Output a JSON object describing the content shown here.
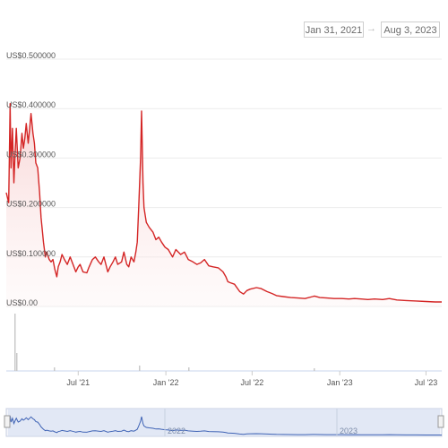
{
  "date_range": {
    "from": "Jan 31, 2021",
    "arrow": "→",
    "to": "Aug 3, 2023"
  },
  "colors": {
    "line": "#d42525",
    "fill_top": "#f6caca",
    "grid": "#ececec",
    "volume": "#c8d4ec",
    "navigator_fill": "#d6e0f2",
    "navigator_line": "#3f63b5"
  },
  "chart_data": {
    "type": "line",
    "title": "",
    "xlabel": "",
    "ylabel": "",
    "y_ticks": [
      "US$0.500000",
      "US$0.400000",
      "US$0.300000",
      "US$0.200000",
      "US$0.100000",
      "US$0.00"
    ],
    "ylim": [
      0,
      0.5
    ],
    "x_ticks": [
      "Jul '21",
      "Jan '22",
      "Jul '22",
      "Jan '23",
      "Jul '23"
    ],
    "x_tick_dates": [
      "2021-07-01",
      "2022-01-01",
      "2022-07-01",
      "2023-01-01",
      "2023-07-01"
    ],
    "xlim": [
      "2021-01-31",
      "2023-08-03"
    ],
    "grid": true,
    "series": [
      {
        "x": [
          "2021-01-31",
          "2021-02-05",
          "2021-02-08",
          "2021-02-10",
          "2021-02-13",
          "2021-02-16",
          "2021-02-18",
          "2021-02-21",
          "2021-02-25",
          "2021-03-01",
          "2021-03-05",
          "2021-03-08",
          "2021-03-11",
          "2021-03-14",
          "2021-03-18",
          "2021-03-21",
          "2021-03-24",
          "2021-03-28",
          "2021-03-31",
          "2021-04-03",
          "2021-04-07",
          "2021-04-11",
          "2021-04-14",
          "2021-04-16",
          "2021-04-19",
          "2021-04-23",
          "2021-04-26",
          "2021-05-01",
          "2021-05-05",
          "2021-05-09",
          "2021-05-13",
          "2021-05-17",
          "2021-05-20",
          "2021-05-24",
          "2021-05-28",
          "2021-06-02",
          "2021-06-08",
          "2021-06-14",
          "2021-06-18",
          "2021-06-22",
          "2021-06-26",
          "2021-07-01",
          "2021-07-05",
          "2021-07-11",
          "2021-07-19",
          "2021-07-24",
          "2021-07-31",
          "2021-08-06",
          "2021-08-13",
          "2021-08-18",
          "2021-08-24",
          "2021-09-01",
          "2021-09-06",
          "2021-09-12",
          "2021-09-17",
          "2021-09-22",
          "2021-09-30",
          "2021-10-05",
          "2021-10-11",
          "2021-10-15",
          "2021-10-20",
          "2021-10-26",
          "2021-10-30",
          "2021-11-02",
          "2021-11-05",
          "2021-11-09",
          "2021-11-11",
          "2021-11-14",
          "2021-11-16",
          "2021-11-21",
          "2021-11-27",
          "2021-12-05",
          "2021-12-11",
          "2021-12-17",
          "2021-12-23",
          "2021-12-30",
          "2022-01-06",
          "2022-01-15",
          "2022-01-22",
          "2022-02-01",
          "2022-02-09",
          "2022-02-17",
          "2022-02-27",
          "2022-03-07",
          "2022-03-15",
          "2022-03-23",
          "2022-04-01",
          "2022-04-10",
          "2022-04-21",
          "2022-05-01",
          "2022-05-07",
          "2022-05-11",
          "2022-05-16",
          "2022-05-25",
          "2022-06-05",
          "2022-06-13",
          "2022-06-20",
          "2022-06-27",
          "2022-07-10",
          "2022-07-20",
          "2022-08-01",
          "2022-08-12",
          "2022-08-21",
          "2022-09-04",
          "2022-09-20",
          "2022-10-05",
          "2022-10-20",
          "2022-11-05",
          "2022-11-09",
          "2022-11-20",
          "2022-12-05",
          "2022-12-20",
          "2023-01-05",
          "2023-01-20",
          "2023-02-01",
          "2023-02-15",
          "2023-03-01",
          "2023-03-15",
          "2023-04-01",
          "2023-04-15",
          "2023-05-01",
          "2023-05-20",
          "2023-06-10",
          "2023-07-01",
          "2023-07-20",
          "2023-08-03"
        ],
        "y": [
          0.23,
          0.21,
          0.41,
          0.28,
          0.36,
          0.25,
          0.3,
          0.36,
          0.28,
          0.3,
          0.35,
          0.32,
          0.34,
          0.37,
          0.33,
          0.36,
          0.39,
          0.35,
          0.33,
          0.29,
          0.28,
          0.23,
          0.18,
          0.16,
          0.13,
          0.1,
          0.11,
          0.095,
          0.09,
          0.095,
          0.075,
          0.06,
          0.08,
          0.09,
          0.105,
          0.095,
          0.085,
          0.1,
          0.09,
          0.08,
          0.07,
          0.08,
          0.085,
          0.07,
          0.068,
          0.08,
          0.095,
          0.1,
          0.09,
          0.085,
          0.1,
          0.07,
          0.08,
          0.09,
          0.1,
          0.085,
          0.09,
          0.11,
          0.085,
          0.08,
          0.1,
          0.09,
          0.11,
          0.13,
          0.2,
          0.3,
          0.395,
          0.25,
          0.2,
          0.17,
          0.16,
          0.15,
          0.135,
          0.14,
          0.13,
          0.12,
          0.115,
          0.1,
          0.115,
          0.105,
          0.11,
          0.095,
          0.09,
          0.085,
          0.088,
          0.095,
          0.082,
          0.08,
          0.078,
          0.07,
          0.06,
          0.05,
          0.048,
          0.045,
          0.03,
          0.025,
          0.032,
          0.035,
          0.038,
          0.036,
          0.03,
          0.026,
          0.022,
          0.02,
          0.018,
          0.017,
          0.016,
          0.02,
          0.021,
          0.018,
          0.017,
          0.016,
          0.016,
          0.015,
          0.016,
          0.015,
          0.014,
          0.015,
          0.014,
          0.016,
          0.013,
          0.012,
          0.011,
          0.01,
          0.009,
          0.009
        ]
      }
    ]
  },
  "navigator": {
    "year_labels": [
      "2022",
      "2023"
    ]
  }
}
